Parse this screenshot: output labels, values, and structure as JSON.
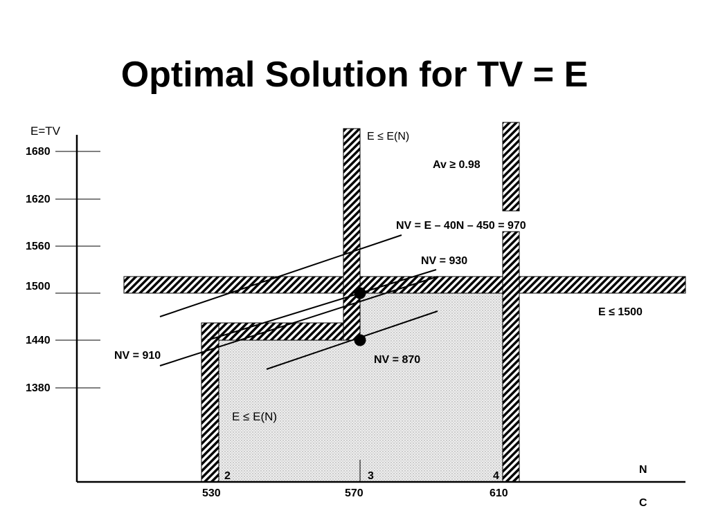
{
  "title": "Optimal Solution for TV = E",
  "axes": {
    "y_label": "E=TV",
    "x_label_top": "N",
    "x_label_bottom": "C",
    "y_ticks": [
      "1680",
      "1620",
      "1560",
      "1500",
      "1440",
      "1380"
    ],
    "x_ticks": [
      "530",
      "570",
      "610"
    ],
    "n_values": [
      "2",
      "3",
      "4"
    ]
  },
  "constraints": {
    "e_le_en_top": "E ≤ E(N)",
    "e_le_en_bottom": "E ≤ E(N)",
    "av": "Av ≥ 0.98",
    "e_le_1500": "E ≤ 1500"
  },
  "iso_lines": {
    "nv_970": "NV =  E – 40N – 450 = 970",
    "nv_930": "NV = 930",
    "nv_910": "NV = 910",
    "nv_870": "NV = 870"
  },
  "colors": {
    "ink": "#000000",
    "feasible_fill": "#e6e6e6",
    "background": "#ffffff"
  }
}
